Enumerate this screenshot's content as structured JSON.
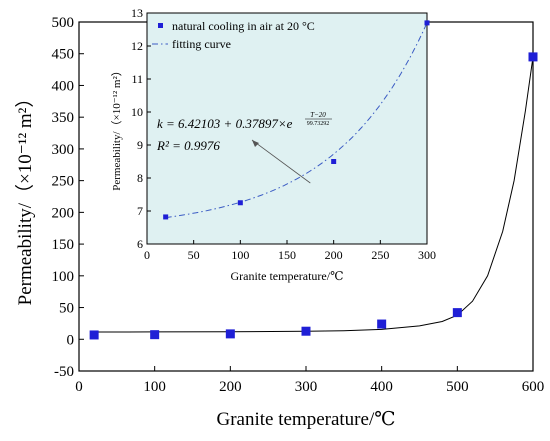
{
  "chart_data": [
    {
      "type": "scatter",
      "role": "main",
      "title": "",
      "xlabel": "Granite temperature/℃",
      "ylabel": "Permeability/（×10⁻¹² m²）",
      "xlim": [
        0,
        600
      ],
      "ylim": [
        -50,
        500
      ],
      "xticks": [
        "0",
        "100",
        "200",
        "300",
        "400",
        "500",
        "600"
      ],
      "yticks": [
        "-50",
        "0",
        "50",
        "100",
        "150",
        "200",
        "250",
        "300",
        "350",
        "400",
        "450",
        "500"
      ],
      "grid": false,
      "series": [
        {
          "kind": "scatter",
          "color": "#1f1fd6",
          "points": [
            {
              "x": 20,
              "y": 6.8
            },
            {
              "x": 100,
              "y": 7.25
            },
            {
              "x": 200,
              "y": 8.5
            },
            {
              "x": 300,
              "y": 12.7
            },
            {
              "x": 400,
              "y": 24
            },
            {
              "x": 500,
              "y": 42
            },
            {
              "x": 600,
              "y": 445
            }
          ]
        },
        {
          "kind": "line",
          "color": "#000000",
          "points": [
            {
              "x": 20,
              "y": 11.5
            },
            {
              "x": 100,
              "y": 11.6
            },
            {
              "x": 200,
              "y": 11.8
            },
            {
              "x": 300,
              "y": 12.5
            },
            {
              "x": 350,
              "y": 13.5
            },
            {
              "x": 400,
              "y": 15.5
            },
            {
              "x": 450,
              "y": 21
            },
            {
              "x": 480,
              "y": 28
            },
            {
              "x": 500,
              "y": 38
            },
            {
              "x": 520,
              "y": 60
            },
            {
              "x": 540,
              "y": 100
            },
            {
              "x": 560,
              "y": 170
            },
            {
              "x": 575,
              "y": 250
            },
            {
              "x": 590,
              "y": 360
            },
            {
              "x": 600,
              "y": 445
            }
          ]
        }
      ]
    },
    {
      "type": "scatter",
      "role": "inset",
      "xlabel": "Granite temperature/℃",
      "ylabel": "Permeability/（×10⁻¹² m²）",
      "xlim": [
        0,
        300
      ],
      "ylim": [
        6,
        13
      ],
      "xticks": [
        "0",
        "50",
        "100",
        "150",
        "200",
        "250",
        "300"
      ],
      "yticks": [
        "6",
        "7",
        "8",
        "9",
        "10",
        "11",
        "12",
        "13"
      ],
      "background": "#dff1f2",
      "legend_position": "top-left",
      "series": [
        {
          "name": "natural cooling in air at 20 °C",
          "kind": "scatter",
          "color": "#1f1fd6",
          "points": [
            {
              "x": 20,
              "y": 6.82
            },
            {
              "x": 100,
              "y": 7.25
            },
            {
              "x": 200,
              "y": 8.5
            },
            {
              "x": 300,
              "y": 12.7
            }
          ]
        },
        {
          "name": "fitting curve",
          "kind": "dashdot-line",
          "color": "#3b5cc4",
          "equation": {
            "a": 6.42103,
            "b": 0.37897,
            "t0": 20,
            "tau": 99.73292
          },
          "x_range": [
            20,
            300
          ]
        }
      ],
      "annotations": {
        "equation_text_lhs": "k = 6.42103 + 0.37897×e",
        "equation_exponent_num": "T−20",
        "equation_exponent_den": "99.73292",
        "r2_text": "R² = 0.9976",
        "arrow_target": {
          "x": 175,
          "y": 7.85
        }
      }
    }
  ]
}
